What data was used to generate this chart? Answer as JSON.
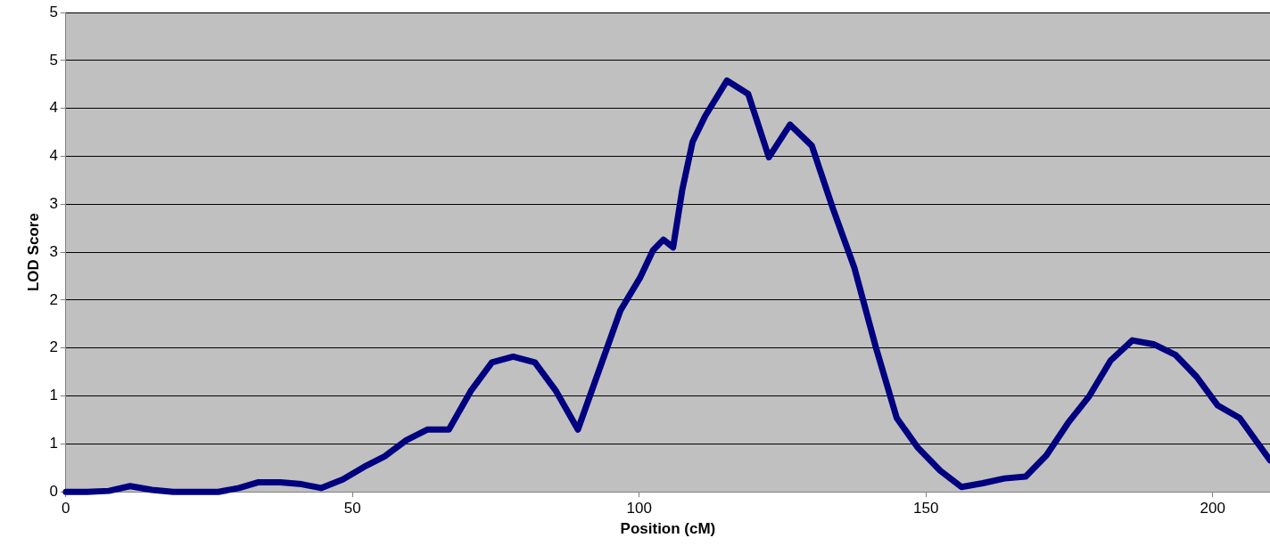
{
  "chart_data": {
    "type": "line",
    "xlabel": "Position (cM)",
    "ylabel": "LOD Score",
    "x": [
      0,
      3.7,
      7.5,
      11.2,
      15,
      18.7,
      22.4,
      26.6,
      30.2,
      33.6,
      37.4,
      41.1,
      44.5,
      48.3,
      52,
      55.6,
      59.4,
      63.1,
      66.8,
      70.6,
      74.3,
      78,
      81.8,
      85.5,
      89.3,
      93,
      96.7,
      100.2,
      102.4,
      104.2,
      105.9,
      107.5,
      109.3,
      111.5,
      115.3,
      119,
      122.6,
      126.3,
      130.1,
      133.8,
      137.5,
      141.3,
      144.9,
      148.6,
      152.5,
      156.2,
      159.9,
      163.7,
      167.4,
      171,
      174.8,
      178.5,
      182.2,
      186,
      189.7,
      193.5,
      197.2,
      200.9,
      204.7,
      210
    ],
    "series": [
      {
        "color": "#000080",
        "values": [
          0,
          0,
          0.01,
          0.06,
          0.02,
          0,
          0,
          0,
          0.04,
          0.1,
          0.1,
          0.08,
          0.04,
          0.13,
          0.26,
          0.37,
          0.54,
          0.65,
          0.65,
          1.05,
          1.35,
          1.41,
          1.35,
          1.05,
          0.65,
          1.27,
          1.89,
          2.24,
          2.52,
          2.63,
          2.55,
          3.15,
          3.65,
          3.92,
          4.29,
          4.15,
          3.49,
          3.83,
          3.61,
          2.95,
          2.34,
          1.5,
          0.77,
          0.46,
          0.22,
          0.05,
          0.09,
          0.14,
          0.16,
          0.38,
          0.72,
          1.0,
          1.37,
          1.58,
          1.54,
          1.43,
          1.2,
          0.9,
          0.77,
          0.33
        ]
      }
    ],
    "xlim": [
      0,
      210
    ],
    "xticks": [
      0,
      50,
      100,
      150,
      200
    ],
    "ylim": [
      0,
      5
    ],
    "yticks": [
      0,
      {
        "value": 0.5,
        "label": "1"
      },
      1,
      {
        "value": 1.5,
        "label": "2"
      },
      2,
      {
        "value": 2.5,
        "label": "3"
      },
      3,
      {
        "value": 3.5,
        "label": "4"
      },
      4,
      {
        "value": 4.5,
        "label": "5"
      },
      5
    ],
    "grid": "y",
    "legend": false,
    "marker": "none",
    "line_style": "solid"
  }
}
